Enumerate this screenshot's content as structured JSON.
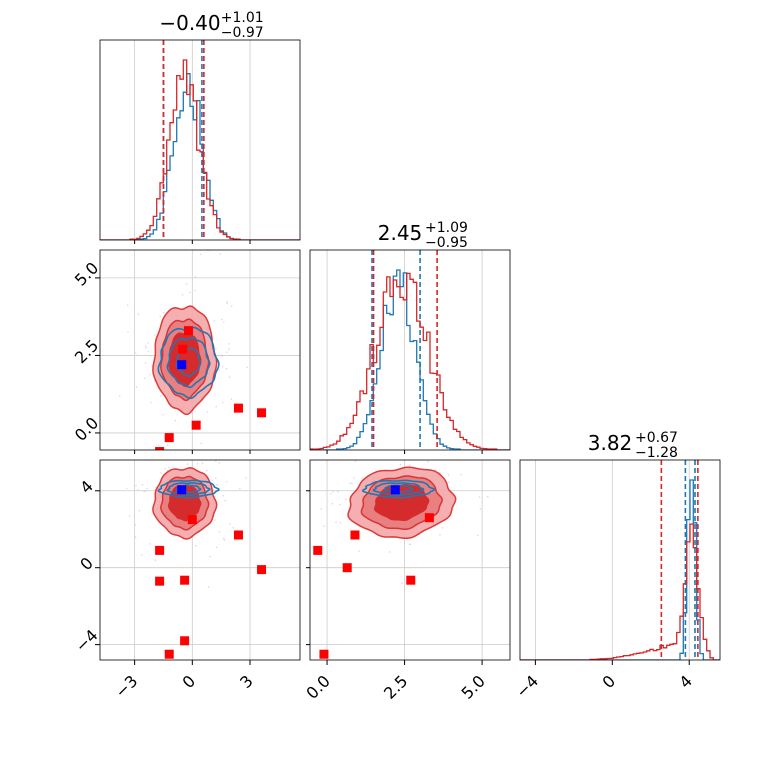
{
  "chart_data": {
    "type": "corner",
    "colors": {
      "series_a": "#1f77b4",
      "series_b": "#d62728",
      "marker_blue": "#0000ff",
      "marker_red": "#ff0000"
    },
    "grid": true,
    "parameters": [
      {
        "id": "p0",
        "range": [
          -4.8,
          5.6
        ],
        "ticks": [
          -3,
          0,
          3
        ],
        "tick_labels": [
          "−3",
          "0",
          "3"
        ],
        "title": {
          "main": "−0.40",
          "sup": "+1.01",
          "sub": "−0.97"
        }
      },
      {
        "id": "p1",
        "range": [
          -0.55,
          5.9
        ],
        "ticks": [
          0,
          2.5,
          5
        ],
        "tick_labels": [
          "0.0",
          "2.5",
          "5.0"
        ],
        "title": {
          "main": "2.45",
          "sup": "+1.09",
          "sub": "−0.95"
        }
      },
      {
        "id": "p2",
        "range": [
          -4.8,
          5.6
        ],
        "ticks": [
          -4,
          0,
          4
        ],
        "tick_labels": [
          "−4",
          "0",
          "4"
        ],
        "title": {
          "main": "3.82",
          "sup": "+0.67",
          "sub": "−1.28"
        }
      }
    ],
    "series": [
      {
        "key": "series_a",
        "color": "#1f77b4",
        "mean": [
          -0.2,
          2.3,
          4.1
        ],
        "sd": [
          0.75,
          0.55,
          0.22
        ],
        "corr": {
          "0-1": 0.0,
          "0-2": 0.0,
          "1-2": -0.1
        },
        "quantiles": [
          [
            -1.5,
            0.5
          ],
          [
            1.45,
            3.0
          ],
          [
            3.8,
            4.3
          ]
        ]
      },
      {
        "key": "series_b",
        "color": "#d62728",
        "mean": [
          -0.4,
          2.4,
          3.4
        ],
        "sd": [
          0.8,
          0.85,
          0.9
        ],
        "corr": {
          "0-1": 0.0,
          "0-2": 0.0,
          "1-2": -0.2
        },
        "quantiles": [
          [
            -1.5,
            0.6
          ],
          [
            1.5,
            3.55
          ],
          [
            2.55,
            4.45
          ]
        ]
      }
    ],
    "markers": {
      "blue": [
        -0.55,
        2.2,
        4.05
      ],
      "red_01": [
        [
          -0.2,
          3.3
        ],
        [
          -0.5,
          2.7
        ],
        [
          2.4,
          0.8
        ],
        [
          3.6,
          0.65
        ],
        [
          0.2,
          0.25
        ],
        [
          -1.2,
          -0.15
        ],
        [
          -1.7,
          -0.6
        ]
      ],
      "red_02": [
        [
          -1.7,
          0.9
        ],
        [
          -1.7,
          -0.7
        ],
        [
          -0.4,
          -0.65
        ],
        [
          -0.4,
          -3.8
        ],
        [
          -1.2,
          -4.5
        ],
        [
          2.4,
          1.7
        ],
        [
          3.6,
          -0.1
        ],
        [
          0,
          2.5
        ]
      ],
      "red_12": [
        [
          -0.3,
          0.9
        ],
        [
          0.9,
          1.7
        ],
        [
          0.65,
          0
        ],
        [
          2.7,
          -0.65
        ],
        [
          -0.1,
          -4.5
        ],
        [
          3.3,
          2.6
        ]
      ]
    }
  }
}
